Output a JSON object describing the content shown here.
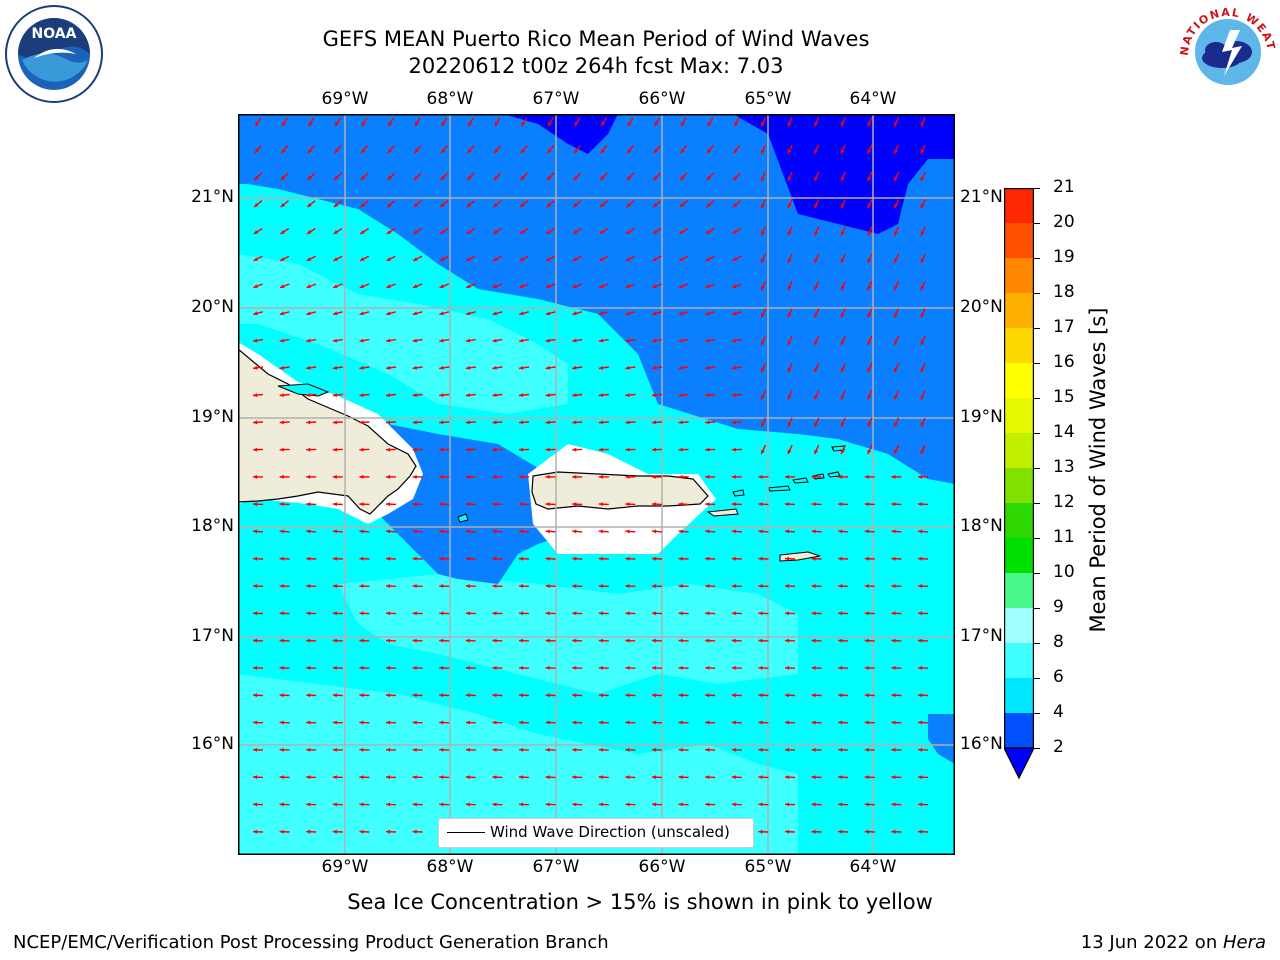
{
  "header": {
    "title_line1": "GEFS MEAN Puerto Rico Mean Period of Wind Waves",
    "title_line2": "20220612 t00z 264h fcst   Max: 7.03"
  },
  "logos": {
    "left": {
      "name": "noaa-logo",
      "text": "NOAA"
    },
    "right": {
      "name": "national-weather-service-logo",
      "text": "NATIONAL WEATHER SERVICE"
    }
  },
  "map": {
    "lon_labels": [
      "69°W",
      "68°W",
      "67°W",
      "66°W",
      "65°W",
      "64°W"
    ],
    "lat_labels": [
      "21°N",
      "20°N",
      "19°N",
      "18°N",
      "17°N",
      "16°N"
    ],
    "legend_label": "Wind Wave Direction (unscaled)",
    "arrow_color": "#ff0000",
    "land_color": "#efedda"
  },
  "colorbar": {
    "title": "Mean Period of Wind Waves [s]",
    "ticks": [
      "2",
      "4",
      "6",
      "8",
      "9",
      "10",
      "11",
      "12",
      "13",
      "14",
      "15",
      "16",
      "17",
      "18",
      "19",
      "20",
      "21"
    ],
    "colors": [
      "#0050ff",
      "#00e8ff",
      "#40ffff",
      "#a0ffff",
      "#48f88a",
      "#00e000",
      "#2cd800",
      "#80e000",
      "#c0f000",
      "#e8f800",
      "#ffff00",
      "#ffd800",
      "#ffb000",
      "#ff8800",
      "#ff5000",
      "#ff2800",
      "#ff0000"
    ],
    "under_color": "#0000ff"
  },
  "footer": {
    "note": "Sea Ice Concentration > 15% is shown in pink to yellow",
    "left": "NCEP/EMC/Verification Post Processing Product Generation Branch",
    "right_prefix": "13 Jun 2022 on ",
    "right_host": "Hera"
  }
}
